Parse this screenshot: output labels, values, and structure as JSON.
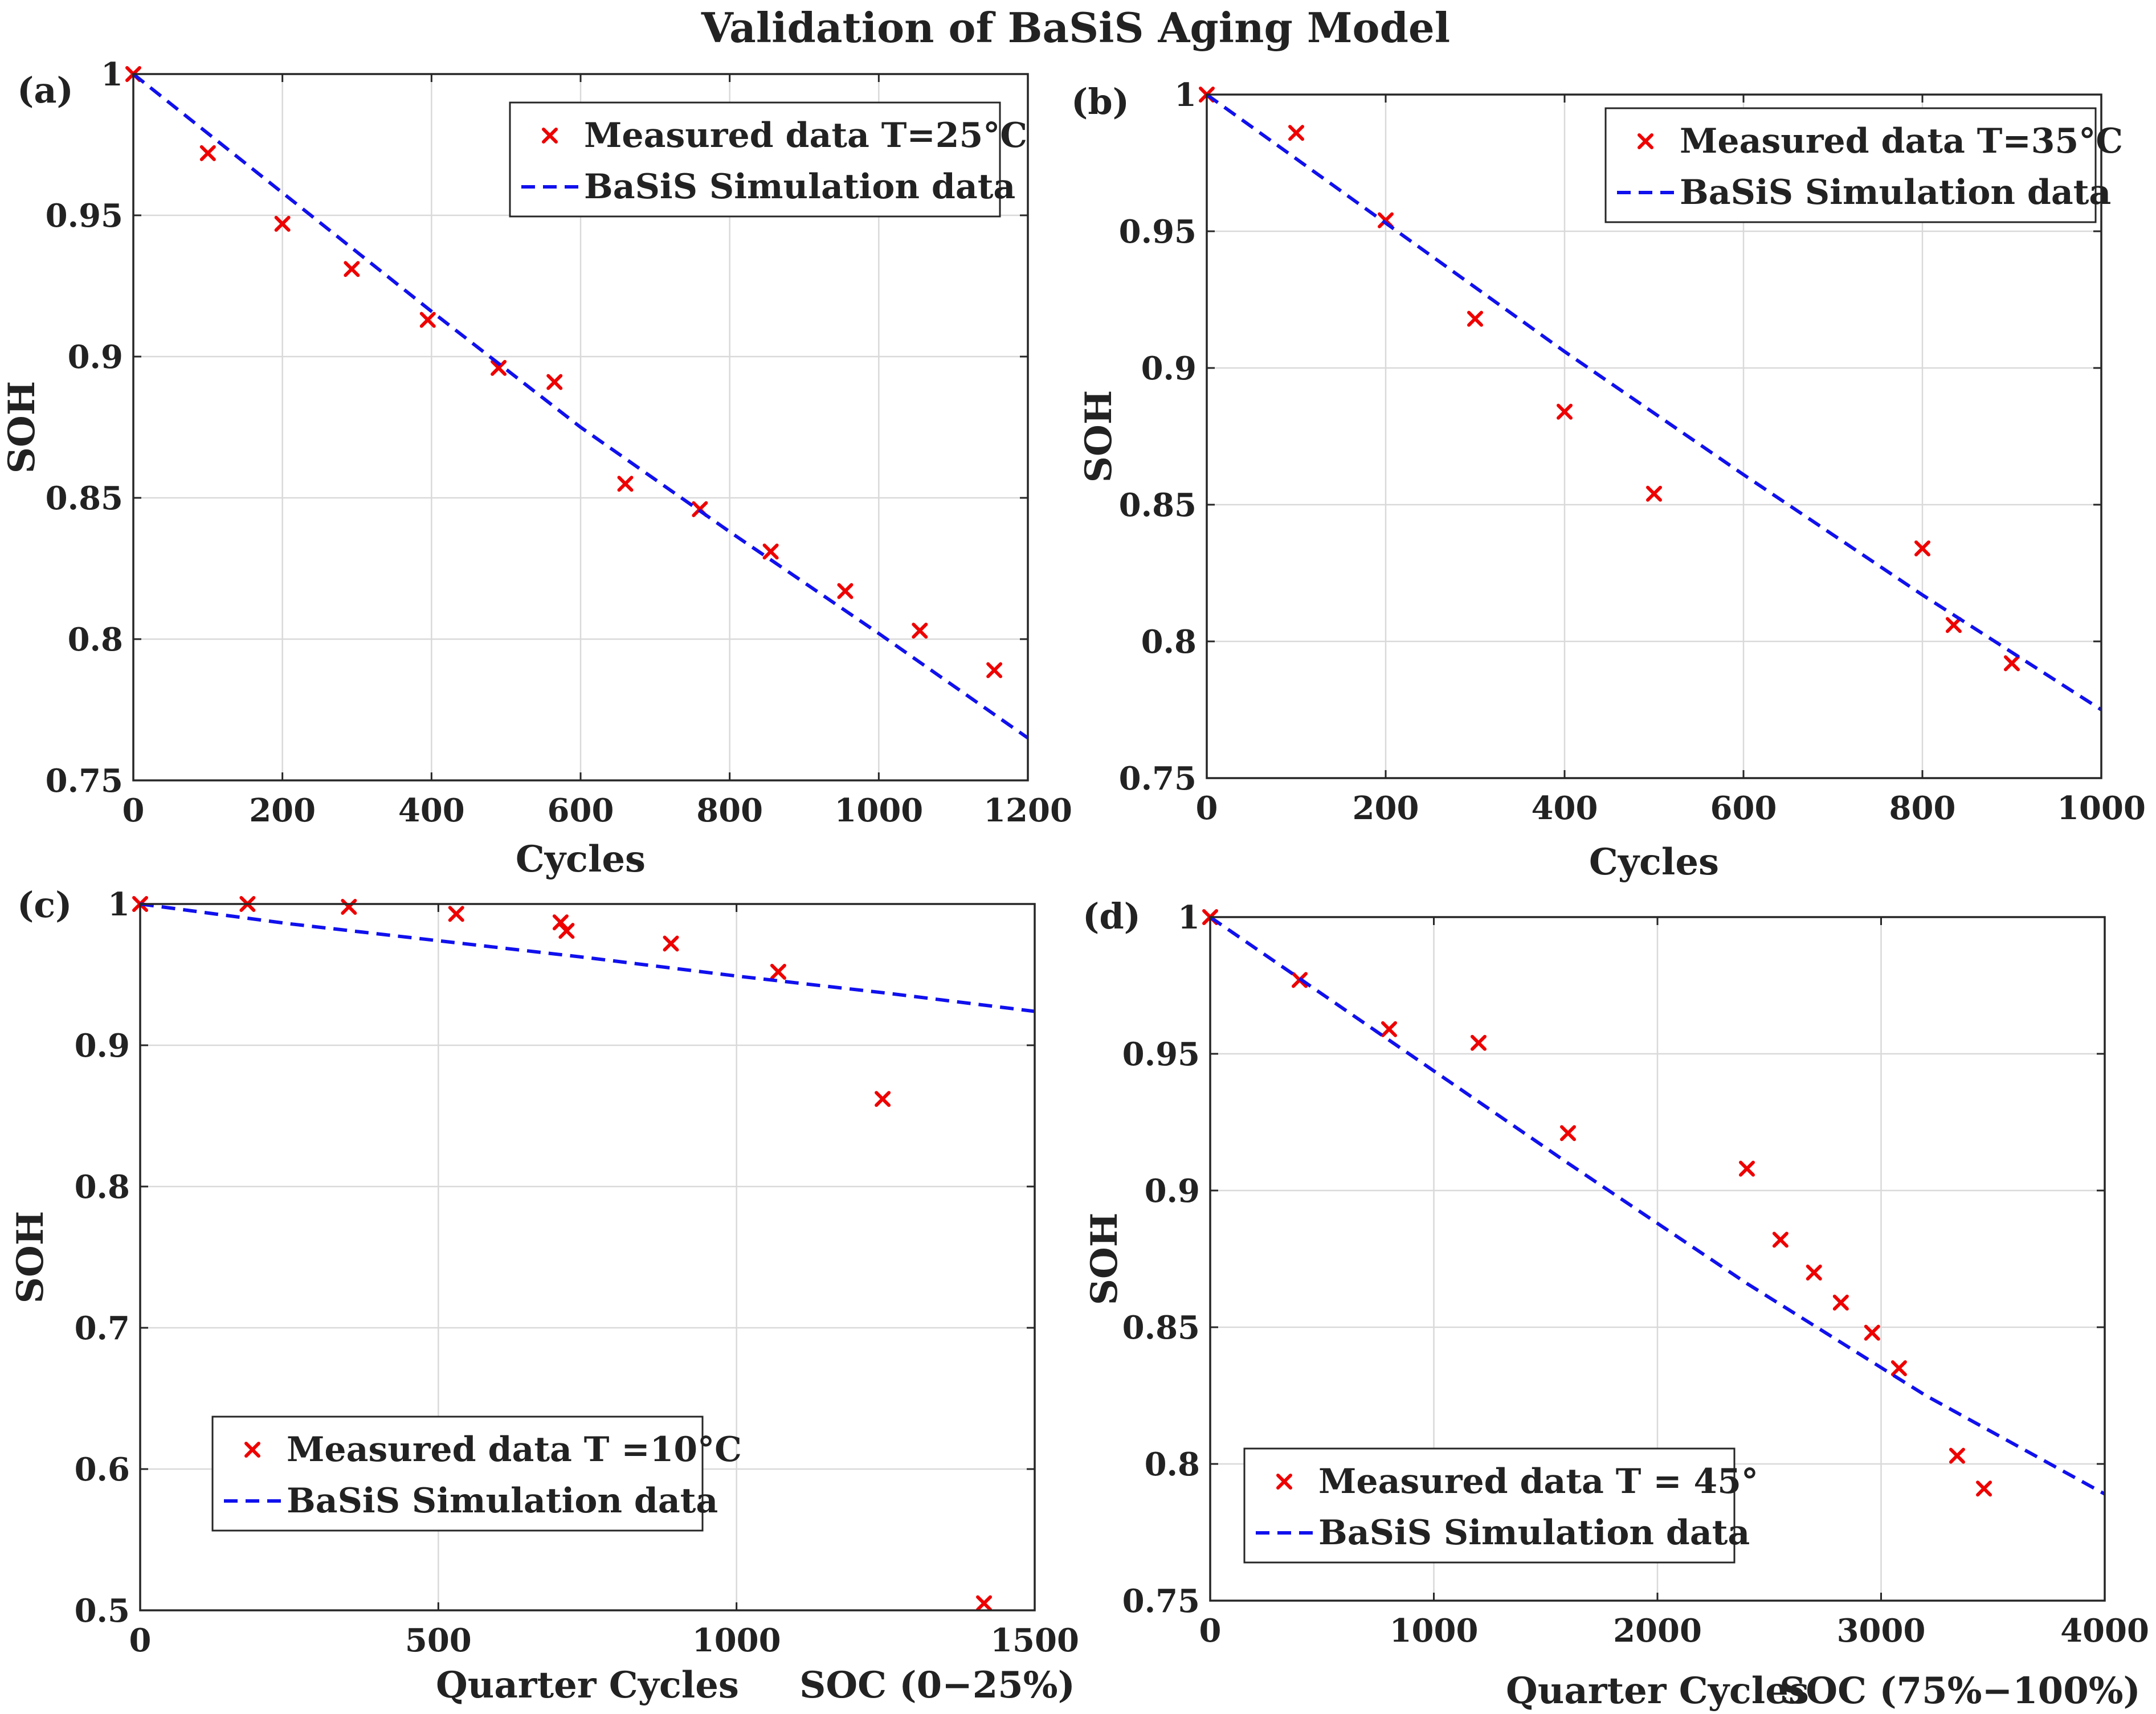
{
  "figure_title": "Validation of BaSiS Aging Model",
  "colors": {
    "measured": "#ee0000",
    "simulation": "#1010ee",
    "grid": "#d9d9d9",
    "axes": "#262626"
  },
  "chart_data": [
    {
      "id": "a",
      "type": "scatter",
      "panel_label": "(a)",
      "xlabel": "Cycles",
      "ylabel": "SOH",
      "xlim": [
        0,
        1200
      ],
      "ylim": [
        0.75,
        1
      ],
      "xticks": [
        0,
        200,
        400,
        600,
        800,
        1000,
        1200
      ],
      "xtick_labels": [
        "0",
        "200",
        "400",
        "600",
        "800",
        "1000",
        "1200"
      ],
      "yticks": [
        0.75,
        0.8,
        0.85,
        0.9,
        0.95,
        1
      ],
      "ytick_labels": [
        "0.75",
        "0.8",
        "0.85",
        "0.9",
        "0.95",
        "1"
      ],
      "grid": true,
      "legend_position": "top-right",
      "series": [
        {
          "name": "Measured data T=25°C",
          "style": "marker",
          "x": [
            0,
            100,
            200,
            293,
            395,
            490,
            565,
            660,
            760,
            855,
            955,
            1055,
            1155
          ],
          "y": [
            1.0,
            0.972,
            0.947,
            0.931,
            0.913,
            0.896,
            0.891,
            0.855,
            0.846,
            0.831,
            0.817,
            0.803,
            0.789
          ]
        },
        {
          "name": "BaSiS Simulation data",
          "style": "dashed",
          "x": [
            0,
            200,
            400,
            600,
            800,
            1000,
            1200
          ],
          "y": [
            1.0,
            0.958,
            0.916,
            0.875,
            0.838,
            0.802,
            0.765
          ]
        }
      ]
    },
    {
      "id": "b",
      "type": "scatter",
      "panel_label": "(b)",
      "xlabel": "Cycles",
      "ylabel": "SOH",
      "xlim": [
        0,
        1000
      ],
      "ylim": [
        0.75,
        1
      ],
      "xticks": [
        0,
        200,
        400,
        600,
        800,
        1000
      ],
      "xtick_labels": [
        "0",
        "200",
        "400",
        "600",
        "800",
        "1000"
      ],
      "yticks": [
        0.75,
        0.8,
        0.85,
        0.9,
        0.95,
        1
      ],
      "ytick_labels": [
        "0.75",
        "0.8",
        "0.85",
        "0.9",
        "0.95",
        "1"
      ],
      "grid": true,
      "legend_position": "top-right",
      "series": [
        {
          "name": "Measured data T=35°C",
          "style": "marker",
          "x": [
            0,
            100,
            200,
            300,
            400,
            500,
            800,
            835,
            900
          ],
          "y": [
            1.0,
            0.986,
            0.954,
            0.918,
            0.884,
            0.854,
            0.834,
            0.806,
            0.792
          ]
        },
        {
          "name": "BaSiS Simulation data",
          "style": "dashed",
          "x": [
            0,
            200,
            400,
            600,
            800,
            1000
          ],
          "y": [
            1.0,
            0.953,
            0.906,
            0.861,
            0.817,
            0.775
          ]
        }
      ]
    },
    {
      "id": "c",
      "type": "scatter",
      "panel_label": "(c)",
      "xlabel": "Quarter  Cycles",
      "x_annotation": "SOC (0−25%)",
      "ylabel": "SOH",
      "xlim": [
        0,
        1500
      ],
      "ylim": [
        0.5,
        1
      ],
      "xticks": [
        0,
        500,
        1000,
        1500
      ],
      "xtick_labels": [
        "0",
        "500",
        "1000",
        "1500"
      ],
      "yticks": [
        0.5,
        0.6,
        0.7,
        0.8,
        0.9,
        1
      ],
      "ytick_labels": [
        "0.5",
        "0.6",
        "0.7",
        "0.8",
        "0.9",
        "1"
      ],
      "grid": true,
      "legend_position": "bottom-left",
      "series": [
        {
          "name": "Measured data T =10°C",
          "style": "marker",
          "x": [
            0,
            180,
            350,
            530,
            705,
            715,
            890,
            1070,
            1245,
            1415
          ],
          "y": [
            1.0,
            1.0,
            0.998,
            0.993,
            0.987,
            0.981,
            0.972,
            0.952,
            0.862,
            0.505
          ]
        },
        {
          "name": "BaSiS Simulation data",
          "style": "dashed",
          "x": [
            0,
            250,
            500,
            750,
            1000,
            1250,
            1500
          ],
          "y": [
            1.0,
            0.986,
            0.974,
            0.962,
            0.949,
            0.937,
            0.924
          ]
        }
      ]
    },
    {
      "id": "d",
      "type": "scatter",
      "panel_label": "(d)",
      "xlabel": "Quarter  Cycles",
      "x_annotation": "SOC (75%−100%)",
      "ylabel": "SOH",
      "xlim": [
        0,
        4000
      ],
      "ylim": [
        0.75,
        1
      ],
      "xticks": [
        0,
        1000,
        2000,
        3000,
        4000
      ],
      "xtick_labels": [
        "0",
        "1000",
        "2000",
        "3000",
        "4000"
      ],
      "yticks": [
        0.75,
        0.8,
        0.85,
        0.9,
        0.95,
        1
      ],
      "ytick_labels": [
        "0.75",
        "0.8",
        "0.85",
        "0.9",
        "0.95",
        "1"
      ],
      "grid": true,
      "legend_position": "bottom-left",
      "series": [
        {
          "name": "Measured data T = 45°",
          "style": "marker",
          "x": [
            0,
            400,
            800,
            1200,
            1600,
            2400,
            2550,
            2700,
            2820,
            2960,
            3080,
            3340,
            3460
          ],
          "y": [
            1.0,
            0.977,
            0.959,
            0.954,
            0.921,
            0.908,
            0.882,
            0.87,
            0.859,
            0.848,
            0.835,
            0.803,
            0.791
          ]
        },
        {
          "name": "BaSiS Simulation data",
          "style": "dashed",
          "x": [
            0,
            800,
            1600,
            2400,
            3200,
            4000
          ],
          "y": [
            1.0,
            0.955,
            0.91,
            0.866,
            0.825,
            0.789
          ]
        }
      ]
    }
  ]
}
